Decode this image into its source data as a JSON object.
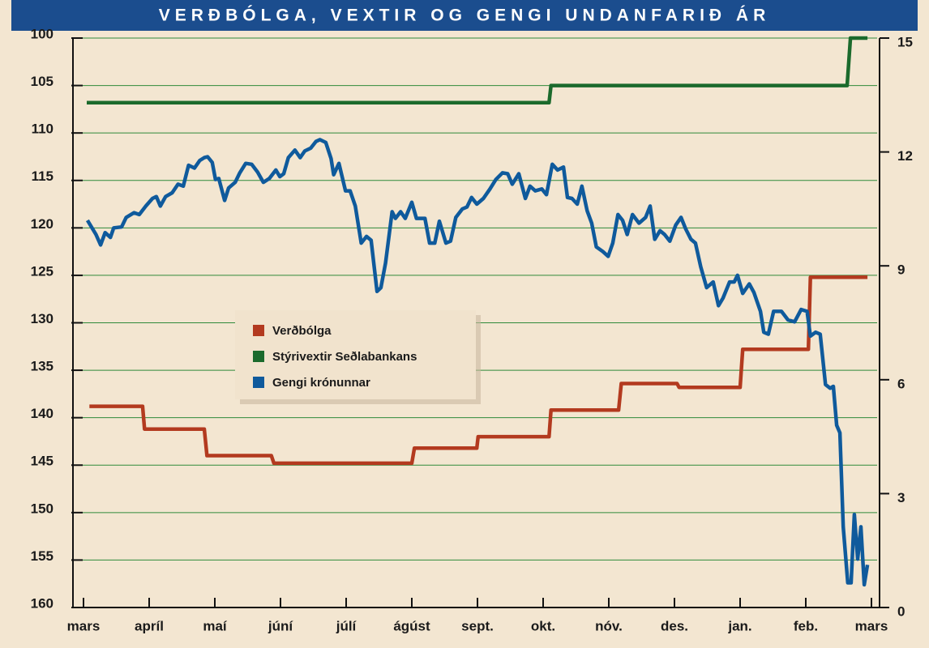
{
  "chart_data": {
    "type": "line",
    "title": "VERÐBÓLGA, VEXTIR OG GENGI UNDANFARIÐ ÁR",
    "categories": [
      "mars",
      "apríl",
      "maí",
      "júní",
      "júlí",
      "ágúst",
      "sept.",
      "okt.",
      "nóv.",
      "des.",
      "jan.",
      "feb.",
      "mars"
    ],
    "xlim": [
      0,
      12
    ],
    "ylim": [
      160,
      100
    ],
    "yticks": [
      100,
      105,
      110,
      115,
      120,
      125,
      130,
      135,
      140,
      145,
      150,
      155,
      160
    ],
    "y2lim": [
      0,
      15
    ],
    "y2ticks": [
      0,
      3,
      6,
      9,
      12,
      15
    ],
    "grid": true,
    "series": [
      {
        "name": "Verðbólga",
        "color": "#b33a1f",
        "axis": "y2",
        "x": [
          0.09,
          0.9,
          0.93,
          1.84,
          1.88,
          2.86,
          2.9,
          5.0,
          5.04,
          5.99,
          6.01,
          7.09,
          7.12,
          8.15,
          8.19,
          9.04,
          9.07,
          10.0,
          10.04,
          11.04,
          11.07,
          11.94
        ],
        "values": [
          5.3,
          5.3,
          4.7,
          4.7,
          4.0,
          4.0,
          3.8,
          3.8,
          4.2,
          4.2,
          4.5,
          4.5,
          5.2,
          5.2,
          5.9,
          5.9,
          5.8,
          5.8,
          6.8,
          6.8,
          8.7,
          8.7
        ]
      },
      {
        "name": "Stýrivextir Seðlabankans",
        "color": "#1b6a2c",
        "axis": "y2",
        "x": [
          0.05,
          7.09,
          7.12,
          11.63,
          11.68,
          11.94
        ],
        "values": [
          13.3,
          13.3,
          13.75,
          13.75,
          15,
          15
        ]
      },
      {
        "name": "Gengi krónunnar",
        "color": "#0f5a9c",
        "x": [
          0.06,
          0.19,
          0.26,
          0.33,
          0.41,
          0.46,
          0.58,
          0.65,
          0.77,
          0.85,
          0.95,
          1.05,
          1.11,
          1.17,
          1.25,
          1.35,
          1.44,
          1.52,
          1.6,
          1.69,
          1.77,
          1.84,
          1.89,
          1.96,
          2.01,
          2.06,
          2.15,
          2.21,
          2.31,
          2.38,
          2.47,
          2.56,
          2.65,
          2.74,
          2.83,
          2.93,
          2.99,
          3.05,
          3.12,
          3.22,
          3.3,
          3.37,
          3.46,
          3.54,
          3.6,
          3.69,
          3.77,
          3.81,
          3.89,
          3.99,
          4.06,
          4.14,
          4.23,
          4.31,
          4.38,
          4.47,
          4.53,
          4.6,
          4.7,
          4.75,
          4.83,
          4.9,
          5.0,
          5.07,
          5.2,
          5.27,
          5.35,
          5.42,
          5.52,
          5.59,
          5.67,
          5.77,
          5.84,
          5.91,
          5.99,
          6.09,
          6.19,
          6.28,
          6.38,
          6.46,
          6.53,
          6.63,
          6.73,
          6.8,
          6.88,
          6.98,
          7.05,
          7.14,
          7.22,
          7.31,
          7.37,
          7.44,
          7.52,
          7.59,
          7.67,
          7.74,
          7.81,
          7.91,
          7.99,
          8.06,
          8.14,
          8.21,
          8.28,
          8.36,
          8.46,
          8.56,
          8.63,
          8.7,
          8.78,
          8.85,
          8.93,
          9.02,
          9.1,
          9.17,
          9.25,
          9.32,
          9.4,
          9.49,
          9.59,
          9.67,
          9.74,
          9.84,
          9.91,
          9.96,
          10.04,
          10.14,
          10.21,
          10.31,
          10.36,
          10.43,
          10.51,
          10.63,
          10.73,
          10.83,
          10.93,
          11.02,
          11.07,
          11.15,
          11.22,
          11.3,
          11.37,
          11.42,
          11.47,
          11.52,
          11.57,
          11.64,
          11.69,
          11.74,
          11.79,
          11.84,
          11.89,
          11.94
        ],
        "values": [
          119.2,
          120.7,
          121.8,
          120.5,
          121,
          120,
          119.9,
          118.9,
          118.4,
          118.6,
          117.7,
          116.9,
          116.7,
          117.7,
          116.7,
          116.3,
          115.4,
          115.6,
          113.4,
          113.7,
          112.9,
          112.6,
          112.5,
          113.1,
          114.9,
          114.8,
          117.1,
          115.8,
          115.2,
          114.2,
          113.2,
          113.3,
          114.1,
          115.2,
          114.8,
          113.9,
          114.6,
          114.3,
          112.6,
          111.8,
          112.6,
          111.9,
          111.6,
          110.9,
          110.7,
          111,
          112.7,
          114.4,
          113.2,
          116.1,
          116.1,
          117.7,
          121.6,
          120.9,
          121.3,
          126.7,
          126.3,
          123.7,
          118.3,
          119,
          118.3,
          119,
          117.3,
          119,
          119,
          121.6,
          121.6,
          119.3,
          121.6,
          121.4,
          118.9,
          118,
          117.8,
          116.8,
          117.5,
          116.9,
          115.9,
          114.9,
          114.2,
          114.3,
          115.4,
          114.3,
          116.9,
          115.6,
          116.1,
          115.9,
          116.5,
          113.3,
          113.9,
          113.6,
          116.8,
          116.9,
          117.5,
          115.6,
          118.2,
          119.5,
          122,
          122.5,
          123,
          121.6,
          118.6,
          119.2,
          120.7,
          118.6,
          119.5,
          118.9,
          117.7,
          121.2,
          120.3,
          120.7,
          121.4,
          119.7,
          118.9,
          120.1,
          121.2,
          121.6,
          124.1,
          126.3,
          125.7,
          128.2,
          127.4,
          125.7,
          125.7,
          125,
          126.9,
          125.9,
          126.8,
          128.8,
          131,
          131.2,
          128.8,
          128.8,
          129.7,
          129.9,
          128.6,
          128.8,
          131.4,
          131,
          131.2,
          136.5,
          136.9,
          136.7,
          140.8,
          141.6,
          151.5,
          157.4,
          157.4,
          150.2,
          154.9,
          151.5,
          157.6,
          155.5
        ]
      }
    ]
  }
}
